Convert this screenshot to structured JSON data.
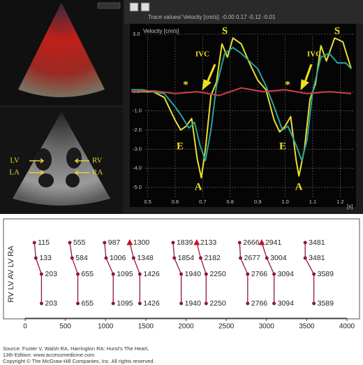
{
  "chart_data": [
    {
      "type": "line",
      "title": "Trace values/ Velocity [cm/s]: -0.00  0.17  -0.12  -0.01",
      "y_label": "Velocity [cm/s]",
      "x_label": "[s]",
      "xlim": [
        0.44,
        1.25
      ],
      "xticks": [
        0.5,
        0.6,
        0.7,
        0.8,
        0.9,
        {
          "value": 1,
          "label": "1.0"
        },
        1.1,
        1.2
      ],
      "ylim": [
        -5.8,
        3.4
      ],
      "yticks": [
        {
          "value": 3,
          "label": "3.0"
        },
        {
          "value": 0,
          "label": "0.0"
        },
        {
          "value": -1,
          "label": "-1.0"
        },
        {
          "value": -2,
          "label": "-2.0"
        },
        {
          "value": -3,
          "label": "-3.0"
        },
        {
          "value": -4,
          "label": "-4.0"
        },
        {
          "value": -5,
          "label": "-5.0"
        }
      ],
      "grid": true,
      "series": [
        {
          "color": "#e8e030",
          "x": [
            0.44,
            0.48,
            0.52,
            0.56,
            0.6,
            0.62,
            0.64,
            0.66,
            0.68,
            0.695,
            0.71,
            0.73,
            0.75,
            0.77,
            0.79,
            0.81,
            0.84,
            0.87,
            0.9,
            0.93,
            0.96,
            0.98,
            1.0,
            1.02,
            1.04,
            1.05,
            1.07,
            1.09,
            1.11,
            1.13,
            1.15,
            1.18,
            1.21,
            1.24
          ],
          "values": [
            0,
            0,
            0,
            -0.3,
            -1.5,
            -2.0,
            -1.8,
            -1.4,
            -3.5,
            -4.5,
            -3.0,
            -0.2,
            0.5,
            2.5,
            1.8,
            2.8,
            2.5,
            1.5,
            0.6,
            0.1,
            -1.5,
            -2.1,
            -1.8,
            -1.3,
            -3.6,
            -4.4,
            -3.0,
            -0.4,
            0.4,
            2.4,
            1.6,
            2.8,
            2.6,
            1.2
          ]
        },
        {
          "color": "#2aa39a",
          "x": [
            0.44,
            0.48,
            0.52,
            0.56,
            0.6,
            0.62,
            0.65,
            0.67,
            0.69,
            0.71,
            0.73,
            0.75,
            0.78,
            0.81,
            0.84,
            0.87,
            0.9,
            0.93,
            0.96,
            0.99,
            1.01,
            1.04,
            1.06,
            1.08,
            1.1,
            1.13,
            1.16,
            1.19,
            1.22,
            1.24
          ],
          "values": [
            0.1,
            0.1,
            0,
            -0.1,
            -0.8,
            -1.2,
            -1.9,
            -1.6,
            -2.8,
            -3.6,
            -2.0,
            0.3,
            2.0,
            2.3,
            2.0,
            1.6,
            1.2,
            0.3,
            -0.8,
            -2.0,
            -1.8,
            -2.8,
            -3.6,
            -2.5,
            0,
            1.8,
            2.0,
            1.5,
            1.5,
            1.2
          ]
        },
        {
          "color": "#d04040",
          "x": [
            0.44,
            0.52,
            0.6,
            0.68,
            0.76,
            0.84,
            0.92,
            1.0,
            1.08,
            1.16,
            1.24
          ],
          "values": [
            0,
            0.05,
            -0.1,
            0,
            -0.2,
            0.2,
            0,
            0.1,
            -0.1,
            0,
            -0.1
          ]
        }
      ],
      "annotations": [
        "S",
        "IVC",
        "E",
        "A",
        "*",
        "S",
        "IVC",
        "E",
        "A",
        "*"
      ]
    },
    {
      "type": "timing",
      "y_label": "RV   LV AV   LV RA",
      "xlim": [
        0,
        4000
      ],
      "xticks": [
        0,
        500,
        1000,
        1500,
        2000,
        2500,
        3000,
        3500,
        4000
      ],
      "color": "#8e1a35",
      "triangle_color": "#c8102e",
      "series": [
        {
          "marker": "circle",
          "values": [
            115,
            133,
            203,
            203
          ]
        },
        {
          "marker": "circle",
          "values": [
            555,
            584,
            655,
            655
          ]
        },
        {
          "marker": "circle",
          "values": [
            987,
            1006,
            1095,
            1095
          ]
        },
        {
          "marker": "triangle",
          "values": [
            1300,
            1348,
            1426,
            1426
          ]
        },
        {
          "marker": "circle",
          "values": [
            1839,
            1854,
            1940,
            1940
          ]
        },
        {
          "marker": "triangle",
          "values": [
            2133,
            2182,
            2250,
            2250
          ]
        },
        {
          "marker": "circle",
          "values": [
            2666,
            2677,
            2766,
            2766
          ]
        },
        {
          "marker": "triangle",
          "values": [
            2941,
            3004,
            3094,
            3094
          ]
        },
        {
          "marker": "circle",
          "values": [
            3481,
            3481,
            3589,
            3589
          ]
        }
      ]
    }
  ],
  "echo_labels": [
    "LV",
    "RV",
    "LA",
    "RA"
  ],
  "source": {
    "line1": "Source: Fuster V, Walsh RA, Harrington RA: Hurst's The Heart,",
    "line2": "13th Edition: www.accessmedicine.com",
    "copyright": "Copyright © The McGraw-Hill Companies, Inc. All rights reserved."
  }
}
